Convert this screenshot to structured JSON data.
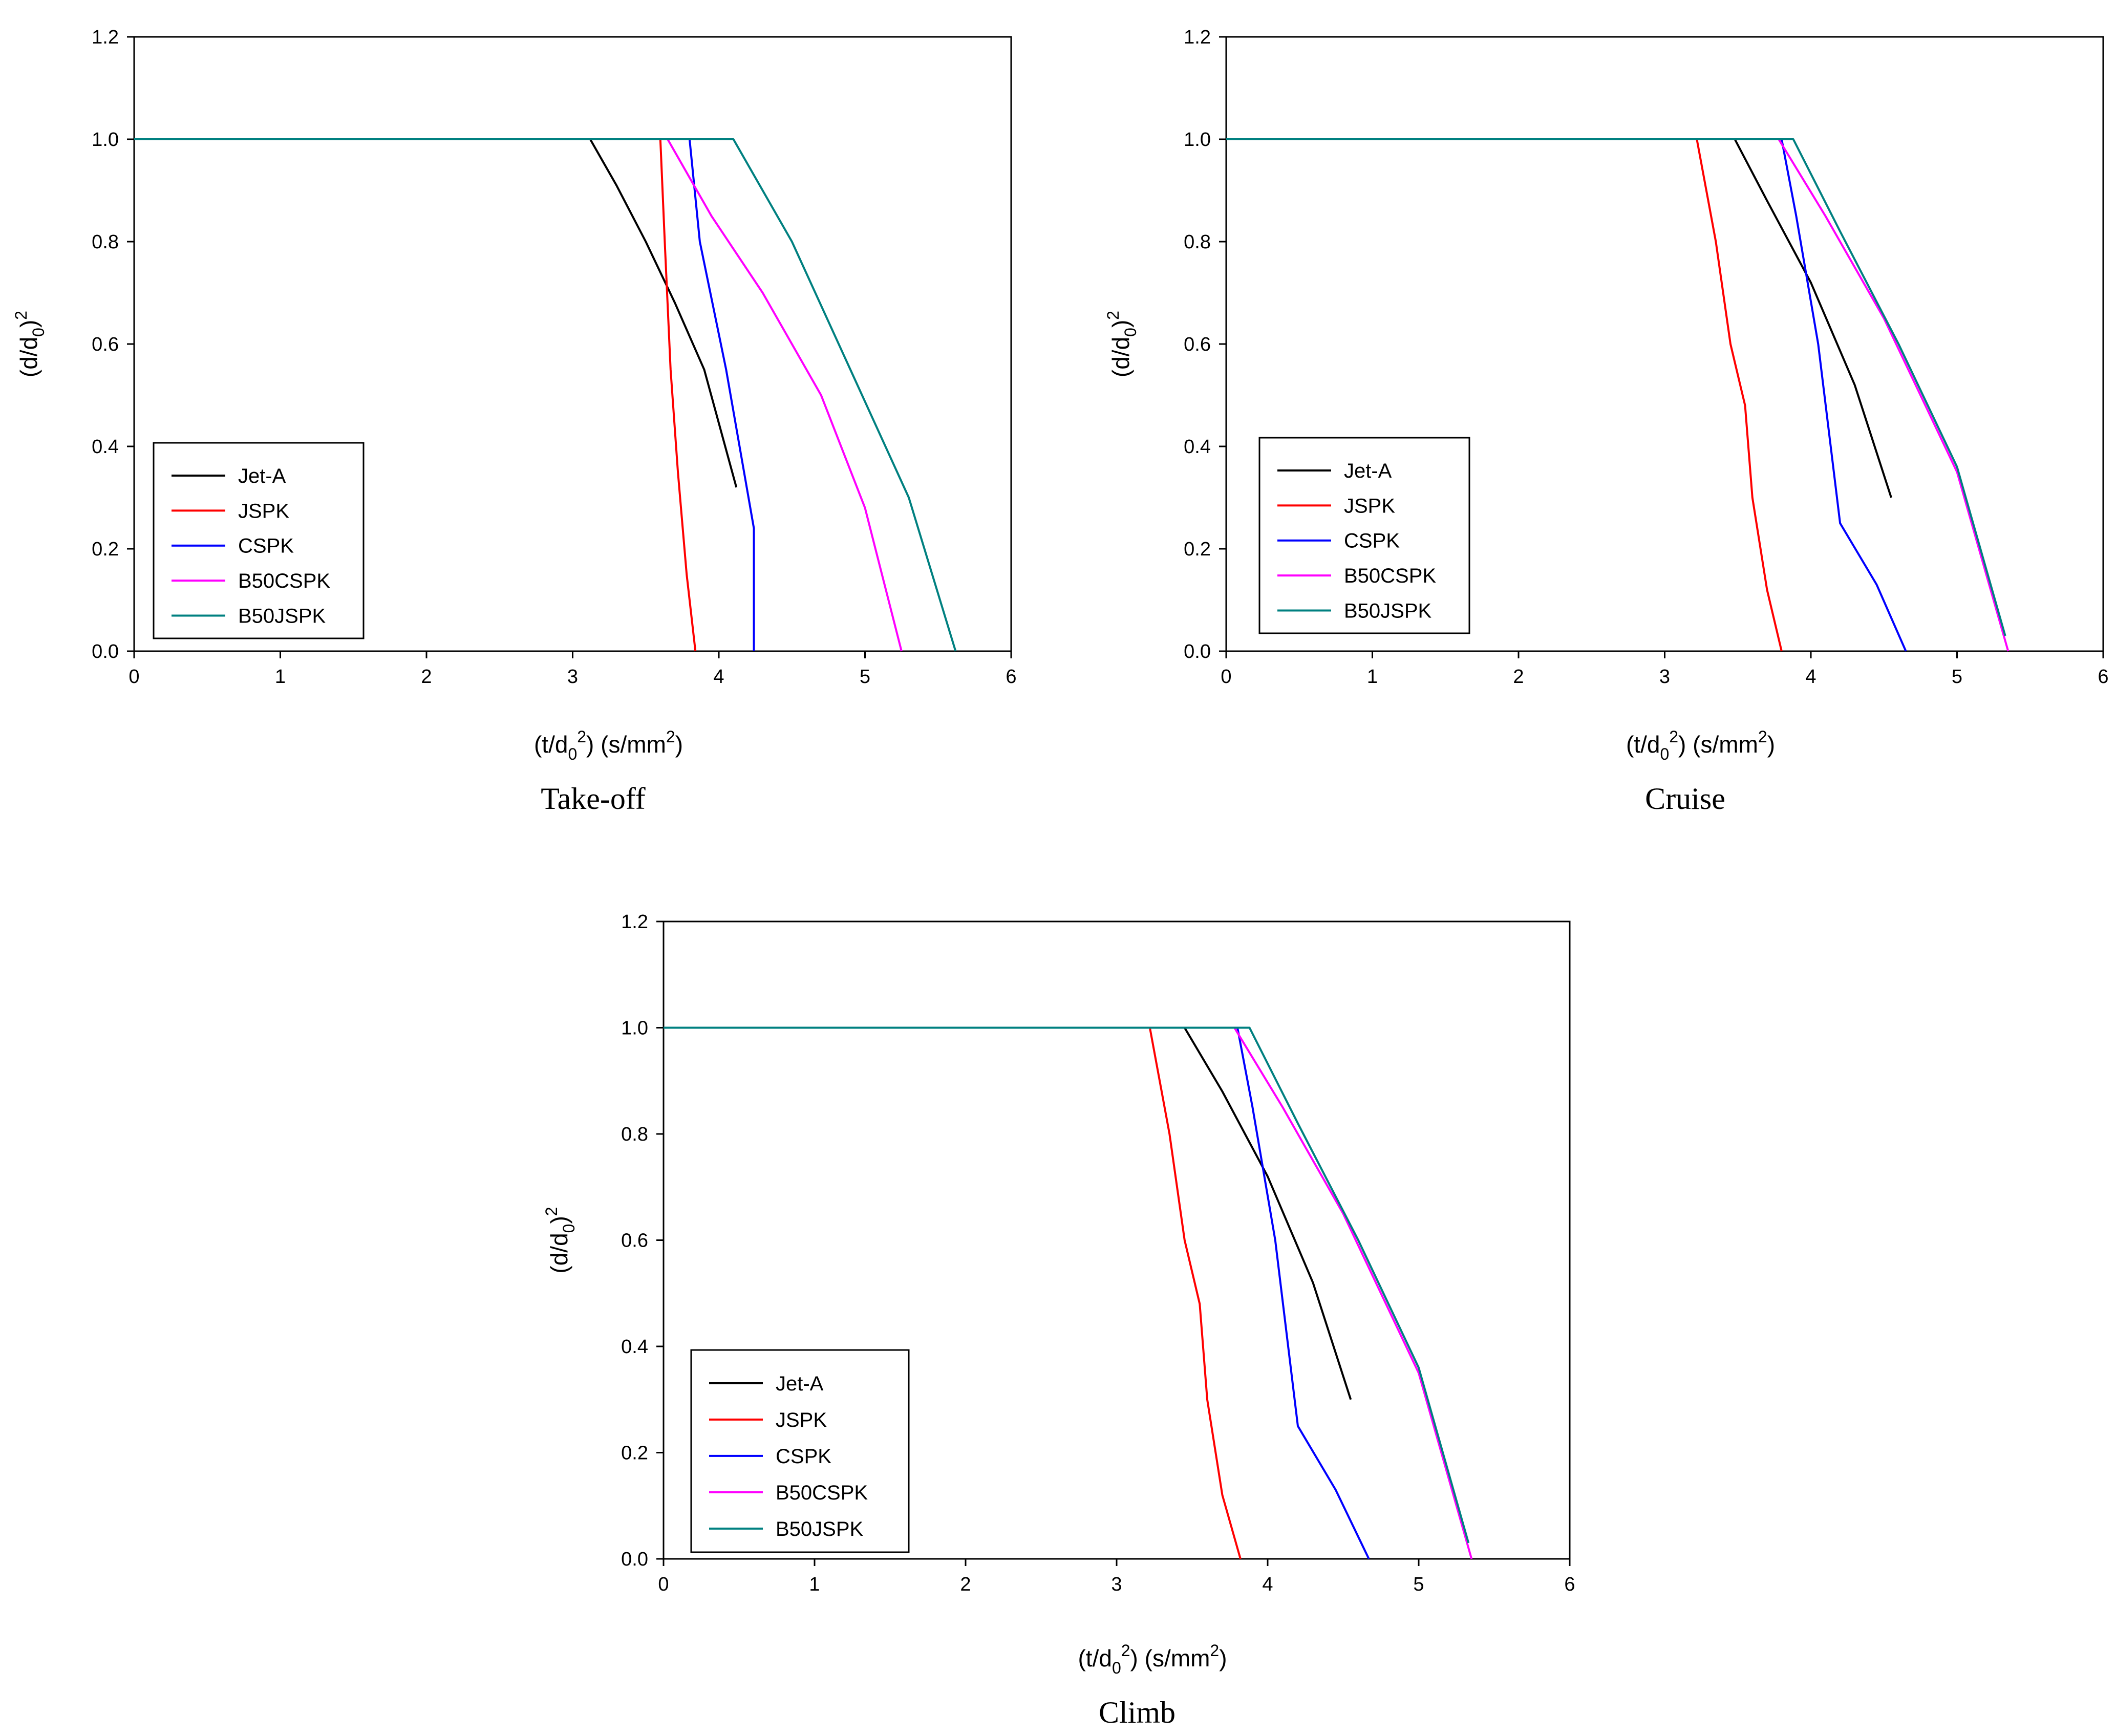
{
  "figure": {
    "panel_count": 3
  },
  "chart_data": [
    {
      "type": "line",
      "title": "Take-off",
      "xlabel": {
        "main": "(t/d",
        "sub": "0",
        "sup": "2",
        "rest": ") (s/mm",
        "sup2": "2",
        "end": ")"
      },
      "ylabel": {
        "main": "(d/d",
        "sub": "0",
        "end": ")",
        "sup": "2"
      },
      "xlim": [
        0,
        6
      ],
      "ylim": [
        0,
        1.2
      ],
      "xticks": [
        "0",
        "1",
        "2",
        "3",
        "4",
        "5",
        "6"
      ],
      "yticks": [
        "0.0",
        "0.2",
        "0.4",
        "0.6",
        "0.8",
        "1.0",
        "1.2"
      ],
      "legend_position": "bottom-left",
      "series": [
        {
          "name": "Jet-A",
          "color": "#000000",
          "points": [
            [
              0,
              1.0
            ],
            [
              3.12,
              1.0
            ],
            [
              3.3,
              0.91
            ],
            [
              3.5,
              0.8
            ],
            [
              3.7,
              0.68
            ],
            [
              3.9,
              0.55
            ],
            [
              4.12,
              0.32
            ]
          ]
        },
        {
          "name": "JSPK",
          "color": "#ff0000",
          "points": [
            [
              0,
              1.0
            ],
            [
              3.6,
              1.0
            ],
            [
              3.63,
              0.8
            ],
            [
              3.67,
              0.55
            ],
            [
              3.72,
              0.35
            ],
            [
              3.78,
              0.15
            ],
            [
              3.84,
              0.0
            ]
          ]
        },
        {
          "name": "CSPK",
          "color": "#0000ff",
          "points": [
            [
              0,
              1.0
            ],
            [
              3.8,
              1.0
            ],
            [
              3.87,
              0.8
            ],
            [
              4.05,
              0.55
            ],
            [
              4.24,
              0.24
            ],
            [
              4.24,
              0.0
            ]
          ]
        },
        {
          "name": "B50CSPK",
          "color": "#ff00ff",
          "points": [
            [
              0,
              1.0
            ],
            [
              3.65,
              1.0
            ],
            [
              3.95,
              0.85
            ],
            [
              4.3,
              0.7
            ],
            [
              4.7,
              0.5
            ],
            [
              5.0,
              0.28
            ],
            [
              5.25,
              0.0
            ]
          ]
        },
        {
          "name": "B50JSPK",
          "color": "#008080",
          "points": [
            [
              0,
              1.0
            ],
            [
              4.1,
              1.0
            ],
            [
              4.5,
              0.8
            ],
            [
              4.9,
              0.55
            ],
            [
              5.3,
              0.3
            ],
            [
              5.62,
              0.0
            ]
          ]
        }
      ]
    },
    {
      "type": "line",
      "title": "Cruise",
      "xlabel": {
        "main": "(t/d",
        "sub": "0",
        "sup": "2",
        "rest": ") (s/mm",
        "sup2": "2",
        "end": ")"
      },
      "ylabel": {
        "main": "(d/d",
        "sub": "0",
        "end": ")",
        "sup": "2"
      },
      "xlim": [
        0,
        6
      ],
      "ylim": [
        0,
        1.2
      ],
      "xticks": [
        "0",
        "1",
        "2",
        "3",
        "4",
        "5",
        "6"
      ],
      "yticks": [
        "0.0",
        "0.2",
        "0.4",
        "0.6",
        "0.8",
        "1.0",
        "1.2"
      ],
      "legend_position": "bottom-left",
      "series": [
        {
          "name": "Jet-A",
          "color": "#000000",
          "points": [
            [
              0,
              1.0
            ],
            [
              3.48,
              1.0
            ],
            [
              3.7,
              0.88
            ],
            [
              4.0,
              0.72
            ],
            [
              4.3,
              0.52
            ],
            [
              4.55,
              0.3
            ]
          ]
        },
        {
          "name": "JSPK",
          "color": "#ff0000",
          "points": [
            [
              0,
              1.0
            ],
            [
              3.22,
              1.0
            ],
            [
              3.35,
              0.8
            ],
            [
              3.45,
              0.6
            ],
            [
              3.55,
              0.48
            ],
            [
              3.6,
              0.3
            ],
            [
              3.7,
              0.12
            ],
            [
              3.8,
              0.0
            ]
          ]
        },
        {
          "name": "CSPK",
          "color": "#0000ff",
          "points": [
            [
              0,
              1.0
            ],
            [
              3.8,
              1.0
            ],
            [
              3.9,
              0.85
            ],
            [
              4.05,
              0.6
            ],
            [
              4.2,
              0.25
            ],
            [
              4.45,
              0.13
            ],
            [
              4.65,
              0.0
            ]
          ]
        },
        {
          "name": "B50CSPK",
          "color": "#ff00ff",
          "points": [
            [
              0,
              1.0
            ],
            [
              3.78,
              1.0
            ],
            [
              4.1,
              0.85
            ],
            [
              4.5,
              0.65
            ],
            [
              5.0,
              0.35
            ],
            [
              5.35,
              0.0
            ]
          ]
        },
        {
          "name": "B50JSPK",
          "color": "#008080",
          "points": [
            [
              0,
              1.0
            ],
            [
              3.88,
              1.0
            ],
            [
              4.2,
              0.82
            ],
            [
              4.6,
              0.6
            ],
            [
              5.0,
              0.36
            ],
            [
              5.33,
              0.03
            ]
          ]
        }
      ]
    },
    {
      "type": "line",
      "title": "Climb",
      "xlabel": {
        "main": "(t/d",
        "sub": "0",
        "sup": "2",
        "rest": ") (s/mm",
        "sup2": "2",
        "end": ")"
      },
      "ylabel": {
        "main": "(d/d",
        "sub": "0",
        "end": ")",
        "sup": "2"
      },
      "xlim": [
        0,
        6
      ],
      "ylim": [
        0,
        1.2
      ],
      "xticks": [
        "0",
        "1",
        "2",
        "3",
        "4",
        "5",
        "6"
      ],
      "yticks": [
        "0.0",
        "0.2",
        "0.4",
        "0.6",
        "0.8",
        "1.0",
        "1.2"
      ],
      "legend_position": "bottom-left",
      "series": [
        {
          "name": "Jet-A",
          "color": "#000000",
          "points": [
            [
              0,
              1.0
            ],
            [
              3.45,
              1.0
            ],
            [
              3.7,
              0.88
            ],
            [
              4.0,
              0.72
            ],
            [
              4.3,
              0.52
            ],
            [
              4.55,
              0.3
            ]
          ]
        },
        {
          "name": "JSPK",
          "color": "#ff0000",
          "points": [
            [
              0,
              1.0
            ],
            [
              3.22,
              1.0
            ],
            [
              3.35,
              0.8
            ],
            [
              3.45,
              0.6
            ],
            [
              3.55,
              0.48
            ],
            [
              3.6,
              0.3
            ],
            [
              3.7,
              0.12
            ],
            [
              3.82,
              0.0
            ]
          ]
        },
        {
          "name": "CSPK",
          "color": "#0000ff",
          "points": [
            [
              0,
              1.0
            ],
            [
              3.8,
              1.0
            ],
            [
              3.9,
              0.85
            ],
            [
              4.05,
              0.6
            ],
            [
              4.2,
              0.25
            ],
            [
              4.45,
              0.13
            ],
            [
              4.67,
              0.0
            ]
          ]
        },
        {
          "name": "B50CSPK",
          "color": "#ff00ff",
          "points": [
            [
              0,
              1.0
            ],
            [
              3.78,
              1.0
            ],
            [
              4.1,
              0.85
            ],
            [
              4.5,
              0.65
            ],
            [
              5.0,
              0.35
            ],
            [
              5.35,
              0.0
            ]
          ]
        },
        {
          "name": "B50JSPK",
          "color": "#008080",
          "points": [
            [
              0,
              1.0
            ],
            [
              3.88,
              1.0
            ],
            [
              4.2,
              0.82
            ],
            [
              4.6,
              0.6
            ],
            [
              5.0,
              0.36
            ],
            [
              5.33,
              0.03
            ]
          ]
        }
      ]
    }
  ]
}
